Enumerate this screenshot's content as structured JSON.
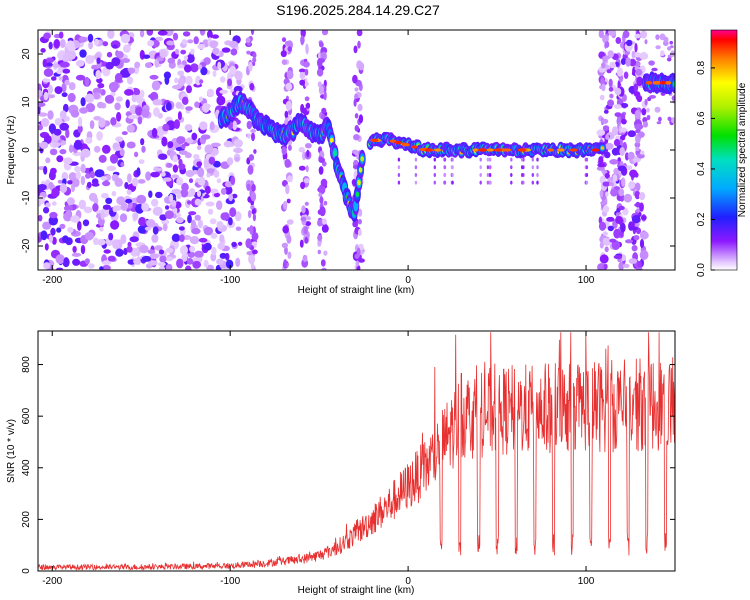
{
  "title": "S196.2025.284.14.29.C27",
  "chart_data": [
    {
      "type": "heatmap",
      "name": "spectrogram",
      "xlabel": "Height of straight line (km)",
      "ylabel": "Frequency (Hz)",
      "xlim": [
        -208,
        150
      ],
      "ylim": [
        -25,
        25
      ],
      "xticks": [
        -200,
        -100,
        0,
        100
      ],
      "yticks": [
        -20,
        -10,
        0,
        10,
        20
      ],
      "colorbar": {
        "label": "Normalized spectral amplitude",
        "range": [
          0.0,
          0.95
        ],
        "ticks": [
          0.0,
          0.2,
          0.4,
          0.6,
          0.8
        ]
      },
      "track": {
        "x": [
          -100,
          -95,
          -90,
          -85,
          -80,
          -75,
          -70,
          -65,
          -60,
          -55,
          -50,
          -45,
          -40,
          -35,
          -30,
          -25,
          -20,
          -10,
          0,
          10,
          20,
          30,
          40,
          50,
          60,
          70,
          80,
          90,
          100,
          110,
          130,
          135,
          140,
          150
        ],
        "freq": [
          8,
          10,
          9,
          6,
          5,
          4,
          3,
          4,
          6,
          4,
          3,
          5,
          -3,
          -9,
          -14,
          1,
          2,
          2,
          1,
          0,
          0,
          0,
          0,
          0,
          0,
          0,
          0,
          0,
          0,
          0,
          14,
          14,
          14,
          14
        ]
      }
    },
    {
      "type": "line",
      "name": "snr",
      "xlabel": "Height of straight line (km)",
      "ylabel": "SNR (10 * v/v)",
      "xlim": [
        -208,
        150
      ],
      "ylim": [
        0,
        930
      ],
      "xticks": [
        -200,
        -100,
        0,
        100
      ],
      "yticks": [
        0,
        200,
        400,
        600,
        800
      ],
      "color": "#e83030",
      "envelope": {
        "x": [
          -208,
          -150,
          -100,
          -80,
          -60,
          -50,
          -40,
          -30,
          -20,
          -10,
          0,
          10,
          20,
          30,
          50,
          80,
          100,
          120,
          150
        ],
        "baseline": [
          15,
          15,
          20,
          30,
          45,
          60,
          90,
          140,
          200,
          260,
          330,
          400,
          500,
          600,
          620,
          630,
          640,
          640,
          650
        ]
      }
    }
  ]
}
